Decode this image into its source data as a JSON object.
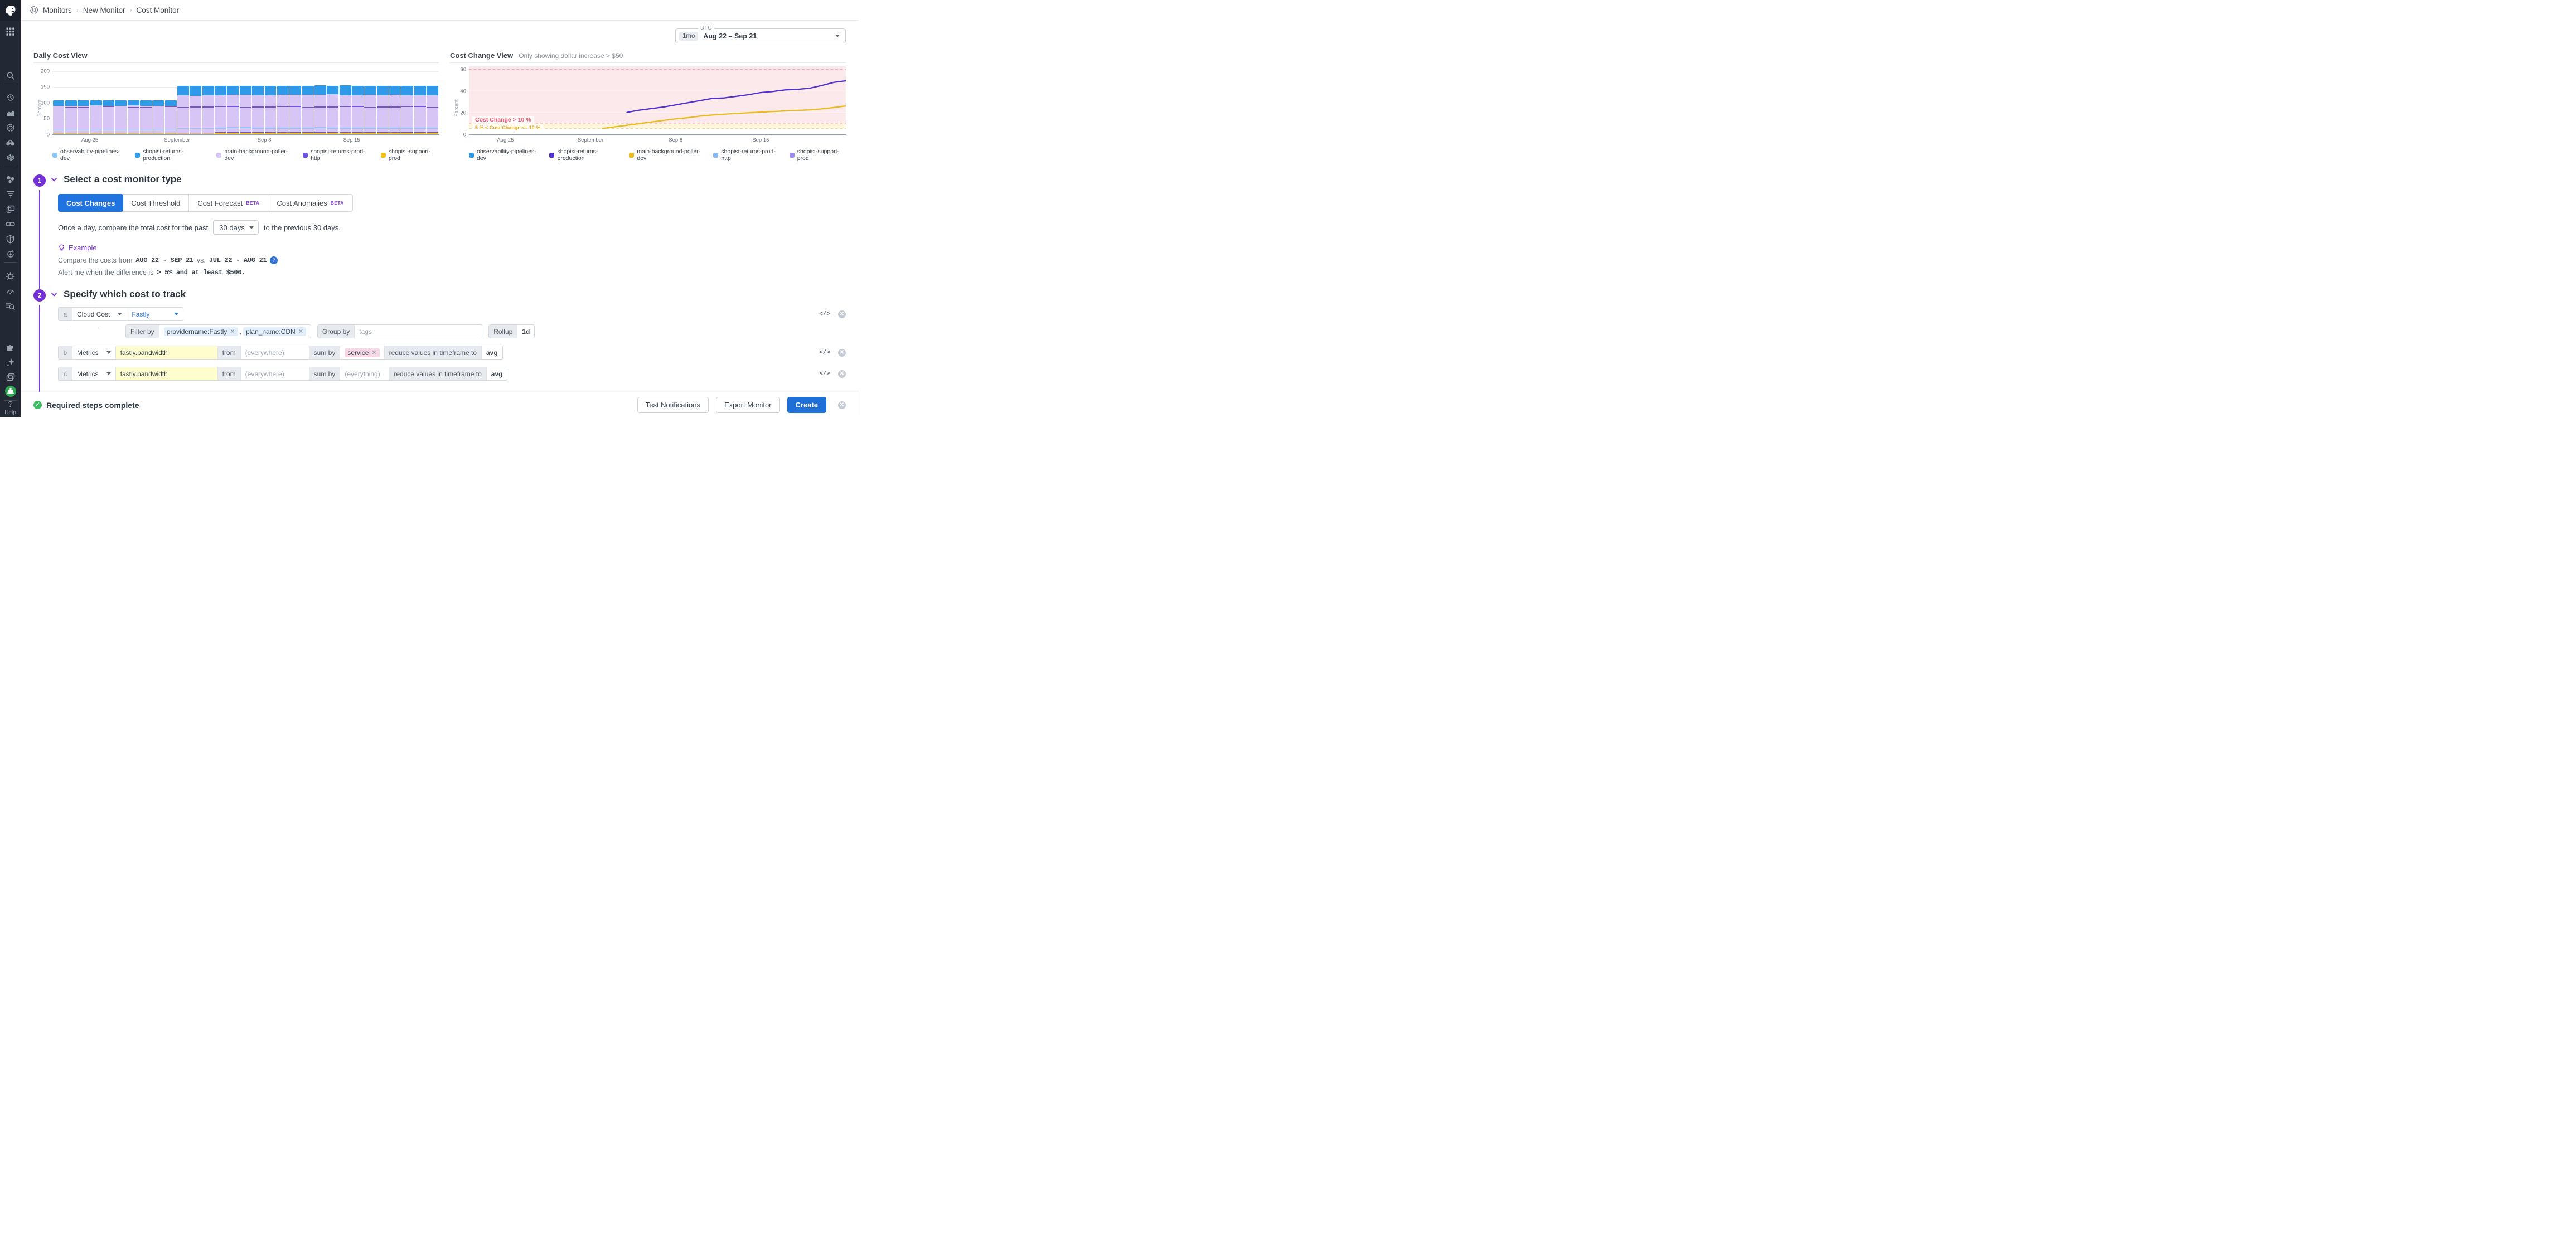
{
  "breadcrumb": {
    "items": [
      "Monitors",
      "New Monitor",
      "Cost Monitor"
    ]
  },
  "sidebar": {
    "help_label": "Help",
    "icons": [
      "apps-grid",
      "search",
      "history",
      "metrics",
      "monitors",
      "watchdog",
      "dashboards",
      "service-map",
      "logs",
      "rum",
      "apm",
      "security",
      "ci",
      "error-tracking",
      "profiling",
      "log-search",
      "integrations",
      "ai-assistant",
      "notebooks",
      "user-avatar"
    ]
  },
  "time_selector": {
    "zone": "UTC",
    "range_badge": "1mo",
    "range_label": "Aug 22 – Sep 21"
  },
  "chart_data": [
    {
      "type": "bar",
      "stacked": true,
      "title": "Daily Cost View",
      "ylabel": "Percent",
      "ylim": [
        0,
        215
      ],
      "yticks": [
        0,
        50,
        100,
        150,
        200
      ],
      "grid": true,
      "legend_position": "bottom",
      "categories": [
        "Aug 22",
        "Aug 23",
        "Aug 24",
        "Aug 25",
        "Aug 26",
        "Aug 27",
        "Aug 28",
        "Aug 29",
        "Aug 30",
        "Aug 31",
        "Sep 1",
        "Sep 2",
        "Sep 3",
        "Sep 4",
        "Sep 5",
        "Sep 6",
        "Sep 7",
        "Sep 8",
        "Sep 9",
        "Sep 10",
        "Sep 11",
        "Sep 12",
        "Sep 13",
        "Sep 14",
        "Sep 15",
        "Sep 16",
        "Sep 17",
        "Sep 18",
        "Sep 19",
        "Sep 20",
        "Sep 21"
      ],
      "xticks": [
        {
          "label": "Aug 25",
          "day": 3
        },
        {
          "label": "September",
          "day": 10
        },
        {
          "label": "Sep 8",
          "day": 17
        },
        {
          "label": "Sep 15",
          "day": 24
        }
      ],
      "series": [
        {
          "name": "observability-pipelines-dev",
          "color": "#8EC8F8",
          "values": [
            3,
            3,
            3,
            3,
            3,
            3,
            3,
            3,
            3,
            3,
            3,
            3,
            3,
            3,
            3,
            3,
            3,
            3,
            3,
            3,
            3,
            3,
            3,
            3,
            3,
            3,
            3,
            3,
            3,
            3,
            3
          ]
        },
        {
          "name": "shopist-returns-production",
          "color": "#2E9AE8",
          "values": [
            17,
            18,
            17,
            16,
            17,
            18,
            16,
            17,
            17,
            17,
            30,
            31,
            29,
            29,
            29,
            28,
            29,
            31,
            27,
            27,
            27,
            30,
            26,
            32,
            30,
            29,
            30,
            27,
            31,
            30,
            30
          ]
        },
        {
          "name": "main-background-poller-dev",
          "color": "#D6C5F5",
          "values": [
            82,
            81,
            82,
            83,
            82,
            81,
            83,
            82,
            82,
            82,
            110,
            109,
            111,
            110,
            110,
            111,
            110,
            109,
            112,
            112,
            112,
            110,
            114,
            109,
            110,
            111,
            110,
            112,
            109,
            110,
            110
          ]
        },
        {
          "name": "shopist-returns-prod-http",
          "color": "#6E54DD",
          "values": [
            2,
            2,
            2,
            2,
            2,
            2,
            2,
            2,
            2,
            2,
            5,
            5,
            5,
            5,
            5,
            5,
            5,
            5,
            5,
            5,
            5,
            5,
            5,
            5,
            5,
            5,
            5,
            5,
            5,
            5,
            5
          ]
        },
        {
          "name": "shopist-support-prod",
          "color": "#F5C218",
          "values": [
            1,
            1,
            1,
            1,
            1,
            1,
            1,
            1,
            1,
            1,
            2,
            2,
            2,
            3,
            4,
            4,
            3,
            3,
            3,
            3,
            3,
            4,
            3,
            3,
            3,
            3,
            3,
            3,
            3,
            3,
            3
          ]
        }
      ]
    },
    {
      "type": "line",
      "title": "Cost Change View",
      "subtitle": "Only showing dollar increase > $50",
      "ylabel": "Percent",
      "ylim": [
        0,
        63
      ],
      "yticks": [
        0,
        20,
        40,
        60
      ],
      "xticks": [
        {
          "label": "Aug 25",
          "day": 3
        },
        {
          "label": "September",
          "day": 10
        },
        {
          "label": "Sep 8",
          "day": 17
        },
        {
          "label": "Sep 15",
          "day": 24
        }
      ],
      "zones": [
        {
          "label": "Cost Change > 10 %",
          "from": 10,
          "to": 63,
          "fill": "#FBE9EB",
          "line_color": "#F2A3AF",
          "text_color": "#F0556E"
        },
        {
          "label": "5 % < Cost Change <= 10 %",
          "from": 5,
          "to": 10,
          "fill": "#FDF5DC",
          "line_color": "#F0D68A",
          "text_color": "#E2A523"
        }
      ],
      "legend": [
        {
          "name": "observability-pipelines-dev",
          "color": "#2D9BE8"
        },
        {
          "name": "shopist-returns-production",
          "color": "#5133CC"
        },
        {
          "name": "main-background-poller-dev",
          "color": "#EABB1D"
        },
        {
          "name": "shopist-returns-prod-http",
          "color": "#85B9F5"
        },
        {
          "name": "shopist-support-prod",
          "color": "#9C89F2"
        }
      ],
      "series": [
        {
          "name": "shopist-returns-production",
          "color": "#5133CC",
          "start_day": 13,
          "values": [
            20,
            22,
            23.5,
            25,
            27,
            29,
            31,
            33,
            33.5,
            35,
            36.5,
            38.5,
            39.5,
            41,
            41.5,
            42.5,
            45,
            48
          ]
        },
        {
          "name": "main-background-poller-dev",
          "color": "#EABB1D",
          "start_day": 11,
          "values": [
            5,
            6.5,
            8,
            9.5,
            11,
            12.5,
            14,
            15,
            16.5,
            17.5,
            18.3,
            19,
            19.6,
            20.2,
            20.8,
            21.3,
            21.8,
            22.3,
            23.2,
            24.5
          ]
        }
      ]
    }
  ],
  "sections": {
    "one": {
      "number": "1",
      "title": "Select a cost monitor type",
      "tabs": [
        {
          "label": "Cost Changes",
          "active": true
        },
        {
          "label": "Cost Threshold",
          "active": false
        },
        {
          "label": "Cost Forecast",
          "badge": "BETA",
          "active": false
        },
        {
          "label": "Cost Anomalies",
          "badge": "BETA",
          "active": false
        }
      ],
      "sentence": {
        "prefix": "Once a day, compare the total cost for the past",
        "select_value": "30 days",
        "suffix": "to the previous 30 days."
      },
      "example": {
        "label": "Example",
        "compare_prefix": "Compare the costs from",
        "range1": "AUG 22 - SEP 21",
        "vs": "vs.",
        "range2": "JUL 22 - AUG 21",
        "alert_prefix": "Alert me when the difference is",
        "alert_code": "> 5% and at least $500."
      }
    },
    "two": {
      "number": "2",
      "title": "Specify which cost to track",
      "rows": {
        "a": {
          "badge": "a",
          "source": "Cloud Cost",
          "provider": "Fastly",
          "filter_label": "Filter by",
          "filters": [
            "providername:Fastly",
            "plan_name:CDN"
          ],
          "group_label": "Group by",
          "group_placeholder": "tags",
          "rollup_label": "Rollup",
          "rollup_value": "1d"
        },
        "b": {
          "badge": "b",
          "source": "Metrics",
          "metric": "fastly.bandwidth",
          "from_label": "from",
          "from_placeholder": "(everywhere)",
          "sumby_label": "sum by",
          "sumby_tag": "service",
          "reduce_label": "reduce values in timeframe to",
          "reduce_value": "avg"
        },
        "c": {
          "badge": "c",
          "source": "Metrics",
          "metric": "fastly.bandwidth",
          "from_label": "from",
          "from_placeholder": "(everywhere)",
          "sumby_label": "sum by",
          "sumby_placeholder": "(everything)",
          "reduce_label": "reduce values in timeframe to",
          "reduce_value": "avg"
        }
      }
    }
  },
  "footer": {
    "status": "Required steps complete",
    "buttons": [
      "Test Notifications",
      "Export Monitor"
    ],
    "primary": "Create"
  },
  "colors": {
    "accent_purple": "#7230D6",
    "primary_blue": "#1F6FD9",
    "active_tab_blue": "#2173DF",
    "success_green": "#3DBD61",
    "sidebar_bg": "#222834"
  }
}
